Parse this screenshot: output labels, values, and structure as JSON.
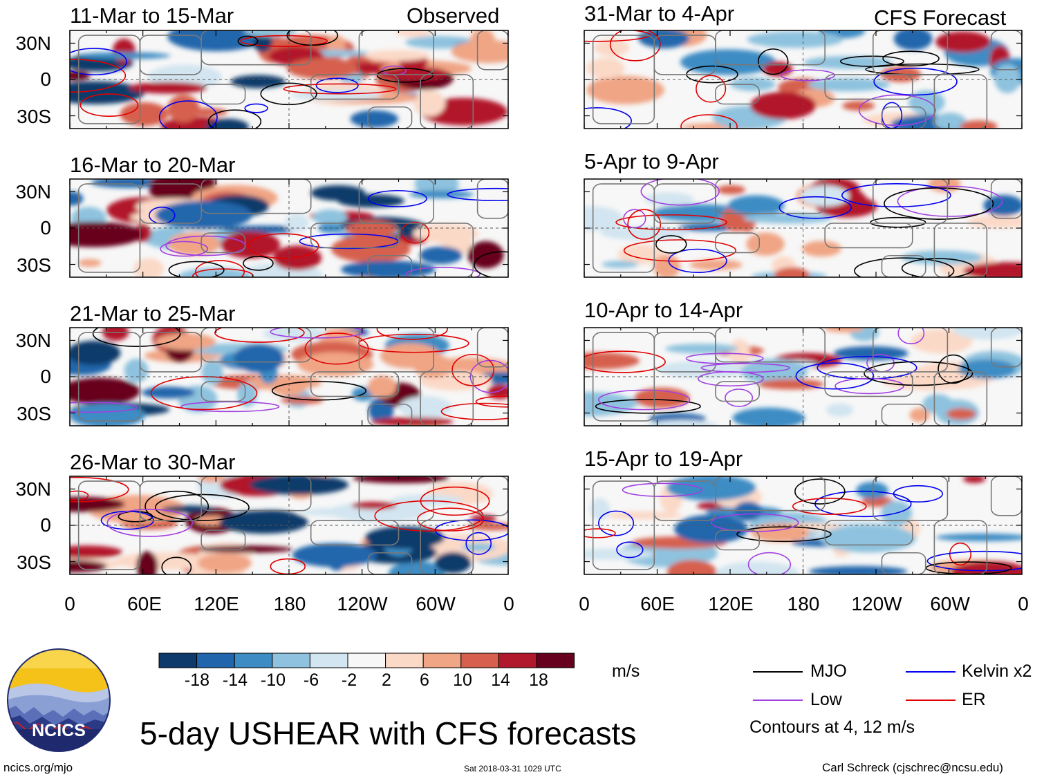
{
  "panels": [
    {
      "id": "p1",
      "title": "11-Mar to 15-Mar",
      "tag": "Observed"
    },
    {
      "id": "p2",
      "title": "16-Mar to 20-Mar",
      "tag": ""
    },
    {
      "id": "p3",
      "title": "21-Mar to 25-Mar",
      "tag": ""
    },
    {
      "id": "p4",
      "title": "26-Mar to 30-Mar",
      "tag": ""
    },
    {
      "id": "p5",
      "title": "31-Mar to 4-Apr",
      "tag": "CFS Forecast"
    },
    {
      "id": "p6",
      "title": "5-Apr to 9-Apr",
      "tag": ""
    },
    {
      "id": "p7",
      "title": "10-Apr to 14-Apr",
      "tag": ""
    },
    {
      "id": "p8",
      "title": "15-Apr to 19-Apr",
      "tag": ""
    }
  ],
  "lat_labels": [
    "30N",
    "0",
    "30S"
  ],
  "lon_labels": [
    "0",
    "60E",
    "120E",
    "180",
    "120W",
    "60W",
    "0"
  ],
  "colorbar": {
    "labels": [
      "-18",
      "-14",
      "-10",
      "-6",
      "-2",
      "2",
      "6",
      "10",
      "14",
      "18"
    ],
    "colors": [
      "#0d3a6b",
      "#2166ac",
      "#3d8cc4",
      "#8ec2de",
      "#d2e5f0",
      "#f7f7f7",
      "#fbd9c7",
      "#f0a585",
      "#d6604d",
      "#b2182b",
      "#67001f"
    ],
    "units": "m/s"
  },
  "legend": {
    "items": [
      {
        "label": "MJO",
        "color": "#000000"
      },
      {
        "label": "Kelvin x2",
        "color": "#0000ee"
      },
      {
        "label": "Low",
        "color": "#a040e0"
      },
      {
        "label": "ER",
        "color": "#e00000"
      }
    ],
    "note": "Contours at 4, 12 m/s"
  },
  "main_title": "5-day USHEAR with CFS forecasts",
  "footer": {
    "left": "ncics.org/mjo",
    "center": "Sat 2018-03-31 1029 UTC",
    "right": "Carl Schreck (cjschrec@ncsu.edu)"
  },
  "logo": {
    "text": "NCICS"
  },
  "chart_data": {
    "type": "heatmap",
    "variable": "5-day USHEAR",
    "units": "m/s",
    "color_levels": [
      -18,
      -14,
      -10,
      -6,
      -2,
      2,
      6,
      10,
      14,
      18
    ],
    "contour_levels": [
      4,
      12
    ],
    "contour_series": [
      "MJO",
      "Kelvin x2",
      "Low",
      "ER"
    ],
    "lon_ticks": [
      "0",
      "60E",
      "120E",
      "180",
      "120W",
      "60W",
      "0"
    ],
    "lat_ticks": [
      "30N",
      "0",
      "30S"
    ],
    "panels_observed": [
      "11-Mar to 15-Mar",
      "16-Mar to 20-Mar",
      "21-Mar to 25-Mar",
      "26-Mar to 30-Mar"
    ],
    "panels_forecast": [
      "31-Mar to 4-Apr",
      "5-Apr to 9-Apr",
      "10-Apr to 14-Apr",
      "15-Apr to 19-Apr"
    ]
  }
}
